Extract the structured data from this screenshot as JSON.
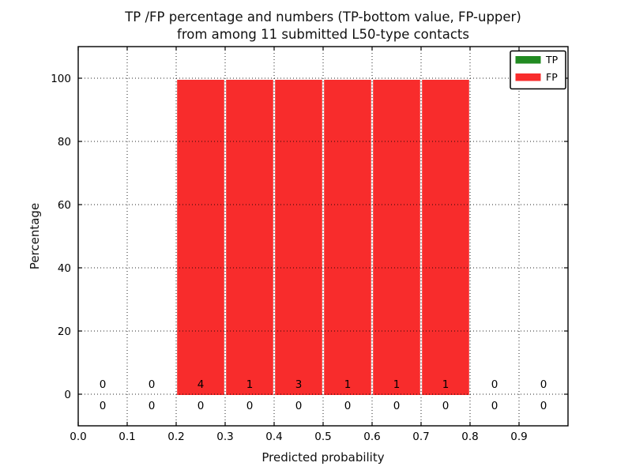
{
  "figure": {
    "title_line1": "TP /FP percentage and numbers (TP-bottom value, FP-upper)",
    "title_line2": "from among 11 submitted L50-type contacts",
    "xlabel": "Predicted probability",
    "ylabel": "Percentage"
  },
  "chart_data": {
    "type": "bar",
    "title": "TP /FP percentage and numbers (TP-bottom value, FP-upper) from among 11 submitted L50-type contacts",
    "xlabel": "Predicted probability",
    "ylabel": "Percentage",
    "xlim": [
      0.0,
      1.0
    ],
    "ylim": [
      -10,
      110
    ],
    "x_ticks": [
      0.0,
      0.1,
      0.2,
      0.3,
      0.4,
      0.5,
      0.6,
      0.7,
      0.8,
      0.9
    ],
    "y_ticks": [
      0,
      20,
      40,
      60,
      80,
      100
    ],
    "grid": true,
    "grid_style": "dotted",
    "bin_edges": [
      0.0,
      0.1,
      0.2,
      0.3,
      0.4,
      0.5,
      0.6,
      0.7,
      0.8,
      0.9,
      1.0
    ],
    "bin_centers": [
      0.05,
      0.15,
      0.25,
      0.35,
      0.45,
      0.55,
      0.65,
      0.75,
      0.85,
      0.95
    ],
    "series": [
      {
        "name": "TP",
        "color": "#228b22",
        "percent": [
          0,
          0,
          0,
          0,
          0,
          0,
          0,
          0,
          0,
          0
        ],
        "counts": [
          0,
          0,
          0,
          0,
          0,
          0,
          0,
          0,
          0,
          0
        ]
      },
      {
        "name": "FP",
        "color": "#f82c2c",
        "percent": [
          0,
          0,
          100,
          100,
          100,
          100,
          100,
          100,
          0,
          0
        ],
        "counts": [
          0,
          0,
          4,
          1,
          3,
          1,
          1,
          1,
          0,
          0
        ]
      }
    ],
    "count_label_note": "FP counts printed just above 0 line, TP counts just below 0 line",
    "legend": {
      "position": "upper right",
      "entries": [
        {
          "label": "TP",
          "color": "#228b22"
        },
        {
          "label": "FP",
          "color": "#f82c2c"
        }
      ]
    }
  }
}
